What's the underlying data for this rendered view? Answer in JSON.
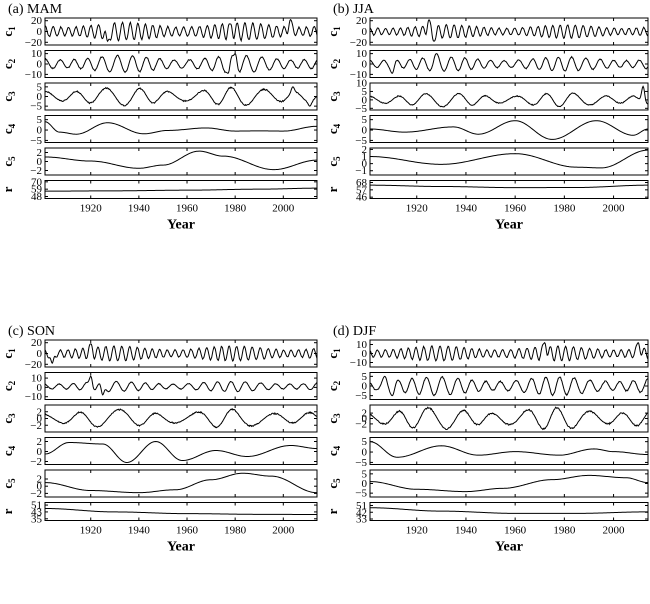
{
  "chart_data": [
    {
      "type": "line",
      "title": "(a) MAM",
      "xlabel": "Year",
      "xlim": [
        1901,
        2014
      ],
      "xticks": [
        1920,
        1940,
        1960,
        1980,
        2000
      ],
      "xtick_labels": [
        "1920",
        "1940",
        "1960",
        "1980",
        "2000"
      ],
      "rows": [
        {
          "label": "c1",
          "ylim": [
            -25,
            25
          ],
          "ticks": [
            20,
            0,
            -20
          ],
          "tick_labels": [
            "20",
            "0",
            "−20"
          ],
          "kind": "osc",
          "period": 3.2,
          "amp": 12,
          "mean": 0,
          "features": [
            {
              "year": 1927,
              "value": -18
            },
            {
              "year": 1978,
              "value": 14
            },
            {
              "year": 2003,
              "value": 22
            }
          ]
        },
        {
          "label": "c2",
          "ylim": [
            -13,
            13
          ],
          "ticks": [
            10,
            0,
            -10
          ],
          "tick_labels": [
            "10",
            "0",
            "−10"
          ],
          "kind": "osc",
          "period": 6,
          "amp": 6,
          "mean": 0,
          "features": [
            {
              "year": 1977,
              "value": -9
            },
            {
              "year": 1980,
              "value": 10
            }
          ]
        },
        {
          "label": "c3",
          "ylim": [
            -7,
            7
          ],
          "ticks": [
            5,
            0,
            -5
          ],
          "tick_labels": [
            "5",
            "0",
            "−5"
          ],
          "kind": "osc",
          "period": 13,
          "amp": 3.5,
          "mean": 0,
          "features": [
            {
              "year": 2004,
              "value": 5
            },
            {
              "year": 2011,
              "value": -5
            }
          ]
        },
        {
          "label": "c4",
          "ylim": [
            -6,
            7
          ],
          "ticks": [
            5,
            0,
            -5
          ],
          "tick_labels": [
            "5",
            "0",
            "−5"
          ],
          "points": [
            [
              1901,
              4
            ],
            [
              1907,
              -1
            ],
            [
              1914,
              -2
            ],
            [
              1927,
              3.5
            ],
            [
              1942,
              -1.8
            ],
            [
              1952,
              -0.2
            ],
            [
              1968,
              1
            ],
            [
              1980,
              -0.5
            ],
            [
              1990,
              -0.4
            ],
            [
              2000,
              -0.5
            ],
            [
              2014,
              1.8
            ]
          ]
        },
        {
          "label": "c5",
          "ylim": [
            -3,
            3
          ],
          "ticks": [
            2,
            0,
            -2
          ],
          "tick_labels": [
            "2",
            "0",
            "−2"
          ],
          "points": [
            [
              1901,
              1
            ],
            [
              1920,
              0.1
            ],
            [
              1940,
              -1.5
            ],
            [
              1950,
              -0.8
            ],
            [
              1965,
              2.3
            ],
            [
              1975,
              1.2
            ],
            [
              1996,
              -1.8
            ],
            [
              2014,
              0.3
            ]
          ]
        },
        {
          "label": "r",
          "ylim": [
            45,
            72
          ],
          "ticks": [
            70,
            59,
            48
          ],
          "tick_labels": [
            "70",
            "59",
            "48"
          ],
          "points": [
            [
              1901,
              56
            ],
            [
              1930,
              56.5
            ],
            [
              1960,
              57.5
            ],
            [
              1990,
              59
            ],
            [
              2014,
              60.5
            ]
          ]
        }
      ]
    },
    {
      "type": "line",
      "title": "(b) JJA",
      "xlabel": "Year",
      "xlim": [
        1901,
        2014
      ],
      "xticks": [
        1920,
        1940,
        1960,
        1980,
        2000
      ],
      "xtick_labels": [
        "1920",
        "1940",
        "1960",
        "1980",
        "2000"
      ],
      "rows": [
        {
          "label": "c1",
          "ylim": [
            -25,
            25
          ],
          "ticks": [
            20,
            0,
            -20
          ],
          "tick_labels": [
            "20",
            "0",
            "−20"
          ],
          "kind": "osc",
          "period": 3.1,
          "amp": 9,
          "mean": 0,
          "features": [
            {
              "year": 1925,
              "value": 22
            },
            {
              "year": 1927,
              "value": -18
            }
          ]
        },
        {
          "label": "c2",
          "ylim": [
            -13,
            13
          ],
          "ticks": [
            10,
            0,
            -10
          ],
          "tick_labels": [
            "10",
            "0",
            "−10"
          ],
          "kind": "osc",
          "period": 5.5,
          "amp": 5,
          "mean": 0,
          "features": [
            {
              "year": 1928,
              "value": 10
            },
            {
              "year": 1910,
              "value": -9
            }
          ]
        },
        {
          "label": "c3",
          "ylim": [
            -6,
            10
          ],
          "ticks": [
            10,
            5,
            0,
            -5
          ],
          "tick_labels": [
            "10",
            "5",
            "0",
            "−5"
          ],
          "kind": "osc",
          "period": 12,
          "amp": 3,
          "mean": 0,
          "features": [
            {
              "year": 2012,
              "value": 8
            }
          ]
        },
        {
          "label": "c4",
          "ylim": [
            -6,
            7
          ],
          "ticks": [
            5,
            0,
            -5
          ],
          "tick_labels": [
            "5",
            "0",
            "−5"
          ],
          "points": [
            [
              1901,
              0.5
            ],
            [
              1915,
              -1
            ],
            [
              1935,
              1.5
            ],
            [
              1945,
              -2
            ],
            [
              1960,
              4.5
            ],
            [
              1975,
              -4.5
            ],
            [
              1993,
              4.5
            ],
            [
              2008,
              -2.5
            ],
            [
              2014,
              0.5
            ]
          ]
        },
        {
          "label": "c5",
          "ylim": [
            -1.6,
            2.2
          ],
          "ticks": [
            2,
            1,
            0,
            -1
          ],
          "tick_labels": [
            "2",
            "1",
            "0",
            "−1"
          ],
          "points": [
            [
              1901,
              1
            ],
            [
              1930,
              -0.1
            ],
            [
              1960,
              1.4
            ],
            [
              1985,
              -0.5
            ],
            [
              1995,
              -0.6
            ],
            [
              2014,
              1.9
            ]
          ]
        },
        {
          "label": "r",
          "ylim": [
            44,
            71
          ],
          "ticks": [
            68,
            57,
            46
          ],
          "tick_labels": [
            "68",
            "57",
            "46"
          ],
          "points": [
            [
              1901,
              64
            ],
            [
              1930,
              62
            ],
            [
              1960,
              60.3
            ],
            [
              1985,
              60.5
            ],
            [
              2014,
              64
            ]
          ]
        }
      ]
    },
    {
      "type": "line",
      "title": "(c) SON",
      "xlabel": "Year",
      "xlim": [
        1901,
        2014
      ],
      "xticks": [
        1920,
        1940,
        1960,
        1980,
        2000
      ],
      "xtick_labels": [
        "1920",
        "1940",
        "1960",
        "1980",
        "2000"
      ],
      "rows": [
        {
          "label": "c1",
          "ylim": [
            -25,
            25
          ],
          "ticks": [
            20,
            0,
            -20
          ],
          "tick_labels": [
            "20",
            "0",
            "−20"
          ],
          "kind": "osc",
          "period": 3.2,
          "amp": 10,
          "mean": 0,
          "features": [
            {
              "year": 1904,
              "value": -18
            },
            {
              "year": 1920,
              "value": 18
            }
          ]
        },
        {
          "label": "c2",
          "ylim": [
            -13,
            16
          ],
          "ticks": [
            10,
            0,
            -10
          ],
          "tick_labels": [
            "10",
            "0",
            "−10"
          ],
          "kind": "osc",
          "period": 6,
          "amp": 4,
          "mean": 1,
          "features": [
            {
              "year": 1920,
              "value": 12
            },
            {
              "year": 1925,
              "value": -8
            }
          ]
        },
        {
          "label": "c3",
          "ylim": [
            -4,
            4
          ],
          "ticks": [
            2,
            0,
            -2
          ],
          "tick_labels": [
            "2",
            "0",
            "−2"
          ],
          "kind": "osc",
          "period": 16,
          "amp": 2,
          "mean": 0,
          "features": []
        },
        {
          "label": "c4",
          "ylim": [
            -2.6,
            2.8
          ],
          "ticks": [
            2,
            0,
            -2
          ],
          "tick_labels": [
            "2",
            "0",
            "−2"
          ],
          "points": [
            [
              1901,
              -0.5
            ],
            [
              1911,
              1.8
            ],
            [
              1925,
              1.5
            ],
            [
              1935,
              -2.2
            ],
            [
              1947,
              2
            ],
            [
              1958,
              -1.8
            ],
            [
              1972,
              0.2
            ],
            [
              1985,
              -1
            ],
            [
              2003,
              1.2
            ],
            [
              2014,
              0.6
            ]
          ]
        },
        {
          "label": "c5",
          "ylim": [
            -3,
            4.5
          ],
          "ticks": [
            2,
            0,
            -2
          ],
          "tick_labels": [
            "2",
            "0",
            "−2"
          ],
          "points": [
            [
              1901,
              1
            ],
            [
              1920,
              -1.2
            ],
            [
              1940,
              -1.8
            ],
            [
              1955,
              -1
            ],
            [
              1970,
              1.8
            ],
            [
              1983,
              3.6
            ],
            [
              1995,
              2.8
            ],
            [
              2014,
              -1.8
            ]
          ]
        },
        {
          "label": "r",
          "ylim": [
            33,
            54
          ],
          "ticks": [
            51,
            43,
            35
          ],
          "tick_labels": [
            "51",
            "43",
            "35"
          ],
          "points": [
            [
              1901,
              47
            ],
            [
              1930,
              43
            ],
            [
              1960,
              41
            ],
            [
              1990,
              40.2
            ],
            [
              2014,
              40
            ]
          ]
        }
      ]
    },
    {
      "type": "line",
      "title": "(d) DJF",
      "xlabel": "Year",
      "xlim": [
        1901,
        2014
      ],
      "xticks": [
        1920,
        1940,
        1960,
        1980,
        2000
      ],
      "xtick_labels": [
        "1920",
        "1940",
        "1960",
        "1980",
        "2000"
      ],
      "rows": [
        {
          "label": "c1",
          "ylim": [
            -15,
            15
          ],
          "ticks": [
            10,
            0,
            -10
          ],
          "tick_labels": [
            "10",
            "0",
            "−10"
          ],
          "kind": "osc",
          "period": 3.2,
          "amp": 6,
          "mean": 0,
          "features": [
            {
              "year": 1972,
              "value": 12
            },
            {
              "year": 2010,
              "value": 12
            }
          ]
        },
        {
          "label": "c2",
          "ylim": [
            -7,
            7
          ],
          "ticks": [
            5,
            0,
            -5
          ],
          "tick_labels": [
            "5",
            "0",
            "−5"
          ],
          "kind": "osc",
          "period": 6,
          "amp": 3.5,
          "mean": 0,
          "features": [
            {
              "year": 1907,
              "value": 5
            },
            {
              "year": 1910,
              "value": -5
            }
          ]
        },
        {
          "label": "c3",
          "ylim": [
            -5,
            5
          ],
          "ticks": [
            2,
            0,
            -2
          ],
          "tick_labels": [
            "2",
            "0",
            "−2"
          ],
          "kind": "osc",
          "period": 13,
          "amp": 3,
          "mean": 0,
          "features": []
        },
        {
          "label": "c4",
          "ylim": [
            -6,
            7
          ],
          "ticks": [
            5,
            0,
            -5
          ],
          "tick_labels": [
            "5",
            "0",
            "−5"
          ],
          "points": [
            [
              1901,
              5
            ],
            [
              1912,
              -2.5
            ],
            [
              1930,
              3
            ],
            [
              1945,
              -1.5
            ],
            [
              1960,
              0.2
            ],
            [
              1978,
              -1.5
            ],
            [
              1992,
              1.5
            ],
            [
              2000,
              0.2
            ],
            [
              2014,
              -1.2
            ]
          ]
        },
        {
          "label": "c5",
          "ylim": [
            -7,
            7
          ],
          "ticks": [
            5,
            0,
            -5
          ],
          "tick_labels": [
            "5",
            "0",
            "−5"
          ],
          "points": [
            [
              1901,
              1
            ],
            [
              1920,
              -3
            ],
            [
              1940,
              -4.2
            ],
            [
              1955,
              -2.5
            ],
            [
              1975,
              2
            ],
            [
              1990,
              4.2
            ],
            [
              2005,
              3
            ],
            [
              2014,
              0.5
            ]
          ]
        },
        {
          "label": "r",
          "ylim": [
            31,
            55
          ],
          "ticks": [
            51,
            42,
            33
          ],
          "tick_labels": [
            "51",
            "42",
            "33"
          ],
          "points": [
            [
              1901,
              48
            ],
            [
              1930,
              43.5
            ],
            [
              1960,
              40.5
            ],
            [
              1985,
              40.5
            ],
            [
              2014,
              42.5
            ]
          ]
        }
      ]
    }
  ]
}
